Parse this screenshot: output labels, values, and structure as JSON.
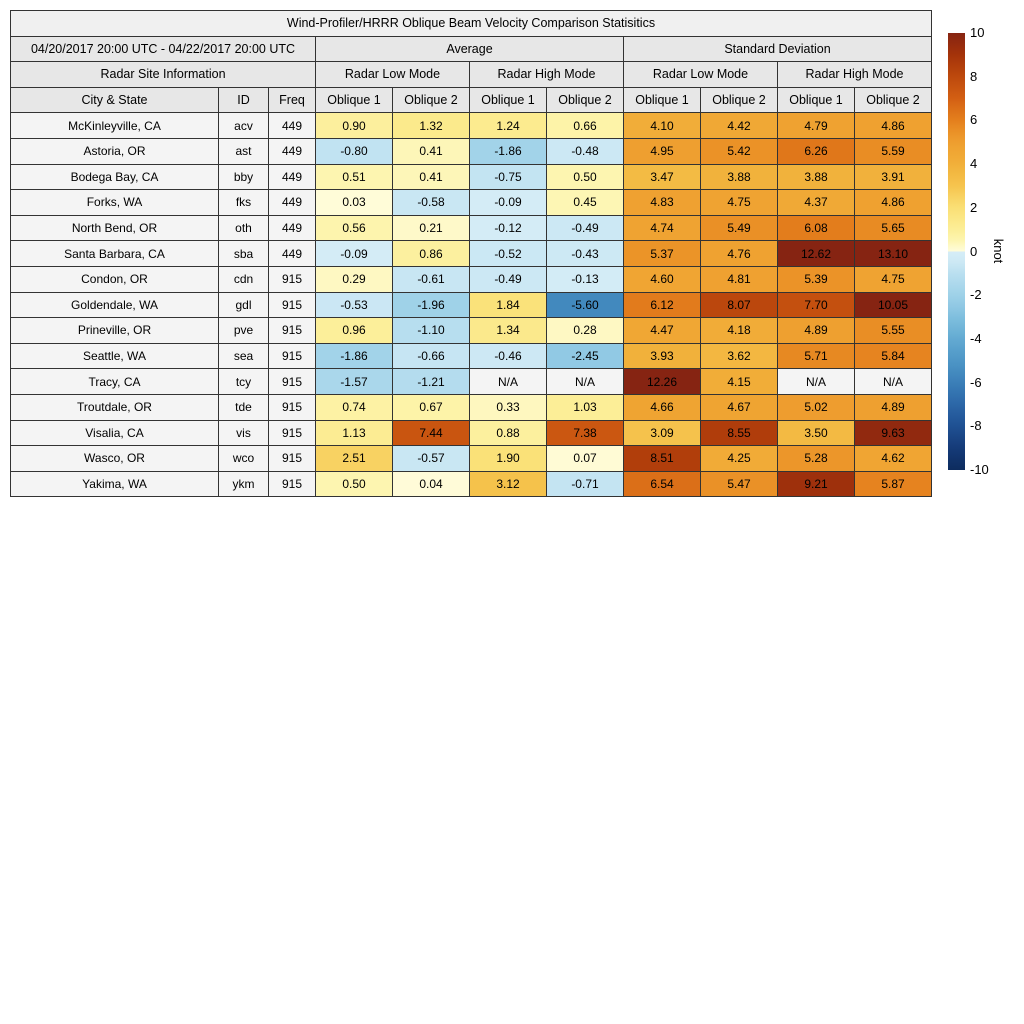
{
  "table": {
    "title": "Wind-Profiler/HRRR Oblique Beam Velocity Comparison Statisitics",
    "date_range": "04/20/2017 20:00 UTC - 04/22/2017 20:00 UTC",
    "groups": [
      "Average",
      "Standard Deviation"
    ],
    "site_info_header": "Radar Site Information",
    "mode_headers": [
      "Radar Low Mode",
      "Radar High Mode",
      "Radar Low Mode",
      "Radar High Mode"
    ],
    "col_headers": [
      "City & State",
      "ID",
      "Freq",
      "Oblique 1",
      "Oblique 2",
      "Oblique 1",
      "Oblique 2",
      "Oblique 1",
      "Oblique 2",
      "Oblique 1",
      "Oblique 2"
    ],
    "na_text": "N/A"
  },
  "colorbar": {
    "label": "knot",
    "min": -10,
    "max": 10,
    "ticks": [
      "10",
      "8",
      "6",
      "4",
      "2",
      "0",
      "-2",
      "-4",
      "-6",
      "-8",
      "-10"
    ],
    "top_color": "#862412",
    "bottom_color": "#0d2c5e"
  },
  "chart_data": {
    "type": "table",
    "title": "Wind-Profiler/HRRR Oblique Beam Velocity Comparison Statisitics",
    "subtitle": "04/20/2017 20:00 UTC - 04/22/2017 20:00 UTC",
    "column_groups": [
      "Average Radar Low Mode",
      "Average Radar High Mode",
      "Standard Deviation Radar Low Mode",
      "Standard Deviation Radar High Mode"
    ],
    "value_columns": [
      "Avg Low Oblique 1",
      "Avg Low Oblique 2",
      "Avg High Oblique 1",
      "Avg High Oblique 2",
      "SD Low Oblique 1",
      "SD Low Oblique 2",
      "SD High Oblique 1",
      "SD High Oblique 2"
    ],
    "unit": "knot",
    "color_scale_range": [
      -10,
      10
    ],
    "rows": [
      {
        "city": "McKinleyville, CA",
        "id": "acv",
        "freq": "449",
        "values": [
          "0.90",
          "1.32",
          "1.24",
          "0.66",
          "4.10",
          "4.42",
          "4.79",
          "4.86"
        ]
      },
      {
        "city": "Astoria, OR",
        "id": "ast",
        "freq": "449",
        "values": [
          "-0.80",
          "0.41",
          "-1.86",
          "-0.48",
          "4.95",
          "5.42",
          "6.26",
          "5.59"
        ]
      },
      {
        "city": "Bodega Bay, CA",
        "id": "bby",
        "freq": "449",
        "values": [
          "0.51",
          "0.41",
          "-0.75",
          "0.50",
          "3.47",
          "3.88",
          "3.88",
          "3.91"
        ]
      },
      {
        "city": "Forks, WA",
        "id": "fks",
        "freq": "449",
        "values": [
          "0.03",
          "-0.58",
          "-0.09",
          "0.45",
          "4.83",
          "4.75",
          "4.37",
          "4.86"
        ]
      },
      {
        "city": "North Bend, OR",
        "id": "oth",
        "freq": "449",
        "values": [
          "0.56",
          "0.21",
          "-0.12",
          "-0.49",
          "4.74",
          "5.49",
          "6.08",
          "5.65"
        ]
      },
      {
        "city": "Santa Barbara, CA",
        "id": "sba",
        "freq": "449",
        "values": [
          "-0.09",
          "0.86",
          "-0.52",
          "-0.43",
          "5.37",
          "4.76",
          "12.62",
          "13.10"
        ]
      },
      {
        "city": "Condon, OR",
        "id": "cdn",
        "freq": "915",
        "values": [
          "0.29",
          "-0.61",
          "-0.49",
          "-0.13",
          "4.60",
          "4.81",
          "5.39",
          "4.75"
        ]
      },
      {
        "city": "Goldendale, WA",
        "id": "gdl",
        "freq": "915",
        "values": [
          "-0.53",
          "-1.96",
          "1.84",
          "-5.60",
          "6.12",
          "8.07",
          "7.70",
          "10.05"
        ]
      },
      {
        "city": "Prineville, OR",
        "id": "pve",
        "freq": "915",
        "values": [
          "0.96",
          "-1.10",
          "1.34",
          "0.28",
          "4.47",
          "4.18",
          "4.89",
          "5.55"
        ]
      },
      {
        "city": "Seattle, WA",
        "id": "sea",
        "freq": "915",
        "values": [
          "-1.86",
          "-0.66",
          "-0.46",
          "-2.45",
          "3.93",
          "3.62",
          "5.71",
          "5.84"
        ]
      },
      {
        "city": "Tracy, CA",
        "id": "tcy",
        "freq": "915",
        "values": [
          "-1.57",
          "-1.21",
          "N/A",
          "N/A",
          "12.26",
          "4.15",
          "N/A",
          "N/A"
        ]
      },
      {
        "city": "Troutdale, OR",
        "id": "tde",
        "freq": "915",
        "values": [
          "0.74",
          "0.67",
          "0.33",
          "1.03",
          "4.66",
          "4.67",
          "5.02",
          "4.89"
        ]
      },
      {
        "city": "Visalia, CA",
        "id": "vis",
        "freq": "915",
        "values": [
          "1.13",
          "7.44",
          "0.88",
          "7.38",
          "3.09",
          "8.55",
          "3.50",
          "9.63"
        ]
      },
      {
        "city": "Wasco, OR",
        "id": "wco",
        "freq": "915",
        "values": [
          "2.51",
          "-0.57",
          "1.90",
          "0.07",
          "8.51",
          "4.25",
          "5.28",
          "4.62"
        ]
      },
      {
        "city": "Yakima, WA",
        "id": "ykm",
        "freq": "915",
        "values": [
          "0.50",
          "0.04",
          "3.12",
          "-0.71",
          "6.54",
          "5.47",
          "9.21",
          "5.87"
        ]
      }
    ]
  }
}
